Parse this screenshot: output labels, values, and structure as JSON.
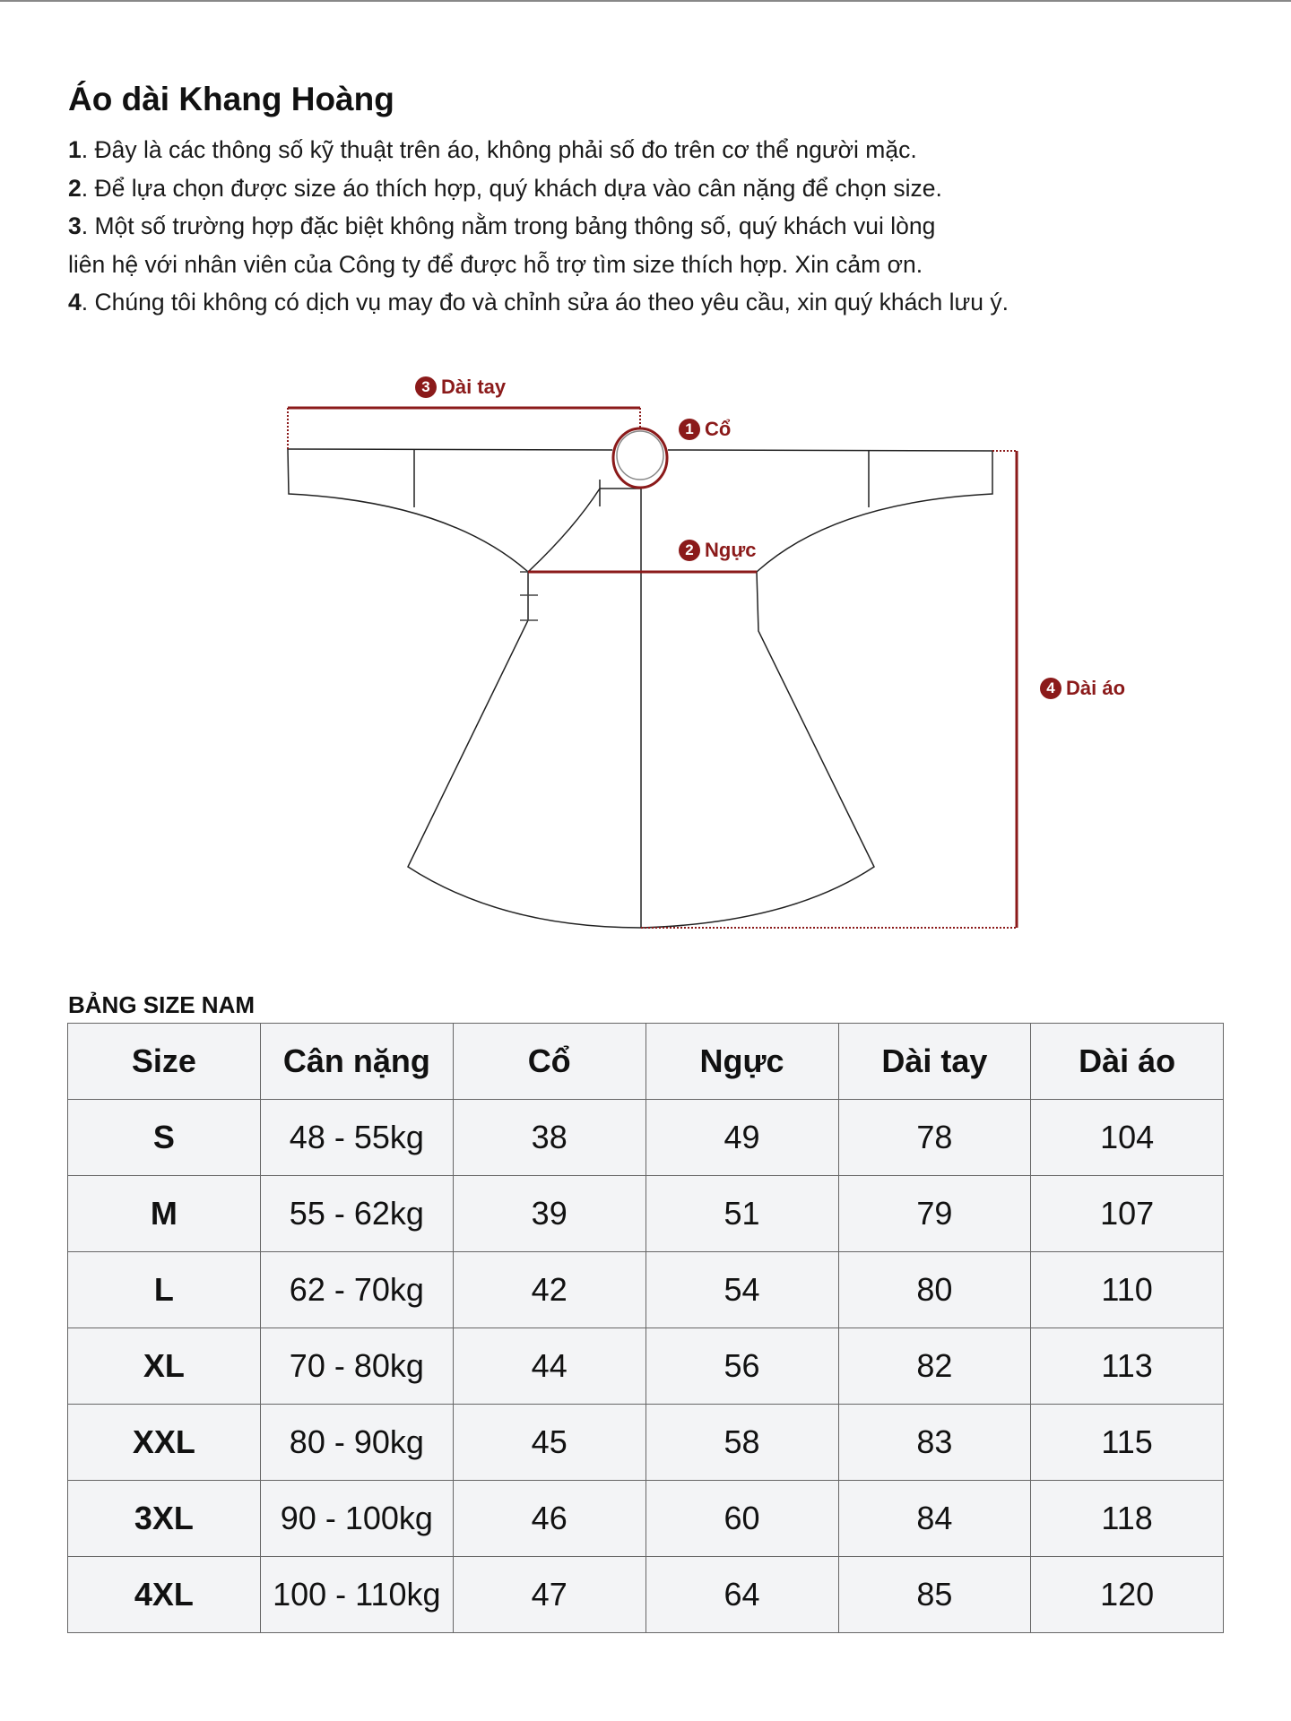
{
  "title": "Áo dài Khang Hoàng",
  "notes": [
    {
      "num": "1",
      "text": ". Đây là các thông số kỹ thuật trên áo, không phải số đo trên cơ thể người mặc."
    },
    {
      "num": "2",
      "text": ". Để lựa chọn được size áo thích hợp, quý khách dựa vào cân nặng để chọn size."
    },
    {
      "num": "3",
      "text": ". Một số trường hợp đặc biệt không nằm trong bảng thông số, quý khách vui lòng"
    },
    {
      "num": "",
      "text": "liên hệ với nhân viên của Công ty để được hỗ trợ tìm size thích hợp. Xin cảm ơn."
    },
    {
      "num": "4",
      "text": ". Chúng tôi không có dịch vụ may đo và chỉnh sửa áo theo yêu cầu, xin quý khách lưu ý."
    }
  ],
  "diagram": {
    "accent_color": "#8b1a1a",
    "labels": [
      {
        "num": "1",
        "text": "Cổ"
      },
      {
        "num": "2",
        "text": "Ngực"
      },
      {
        "num": "3",
        "text": "Dài tay"
      },
      {
        "num": "4",
        "text": "Dài áo"
      }
    ]
  },
  "table": {
    "caption": "BẢNG SIZE NAM",
    "headers": [
      "Size",
      "Cân nặng",
      "Cổ",
      "Ngực",
      "Dài tay",
      "Dài áo"
    ],
    "rows": [
      [
        "S",
        "48 - 55kg",
        "38",
        "49",
        "78",
        "104"
      ],
      [
        "M",
        "55 - 62kg",
        "39",
        "51",
        "79",
        "107"
      ],
      [
        "L",
        "62 - 70kg",
        "42",
        "54",
        "80",
        "110"
      ],
      [
        "XL",
        "70 - 80kg",
        "44",
        "56",
        "82",
        "113"
      ],
      [
        "XXL",
        "80 - 90kg",
        "45",
        "58",
        "83",
        "115"
      ],
      [
        "3XL",
        "90 - 100kg",
        "46",
        "60",
        "84",
        "118"
      ],
      [
        "4XL",
        "100 - 110kg",
        "47",
        "64",
        "85",
        "120"
      ]
    ]
  }
}
